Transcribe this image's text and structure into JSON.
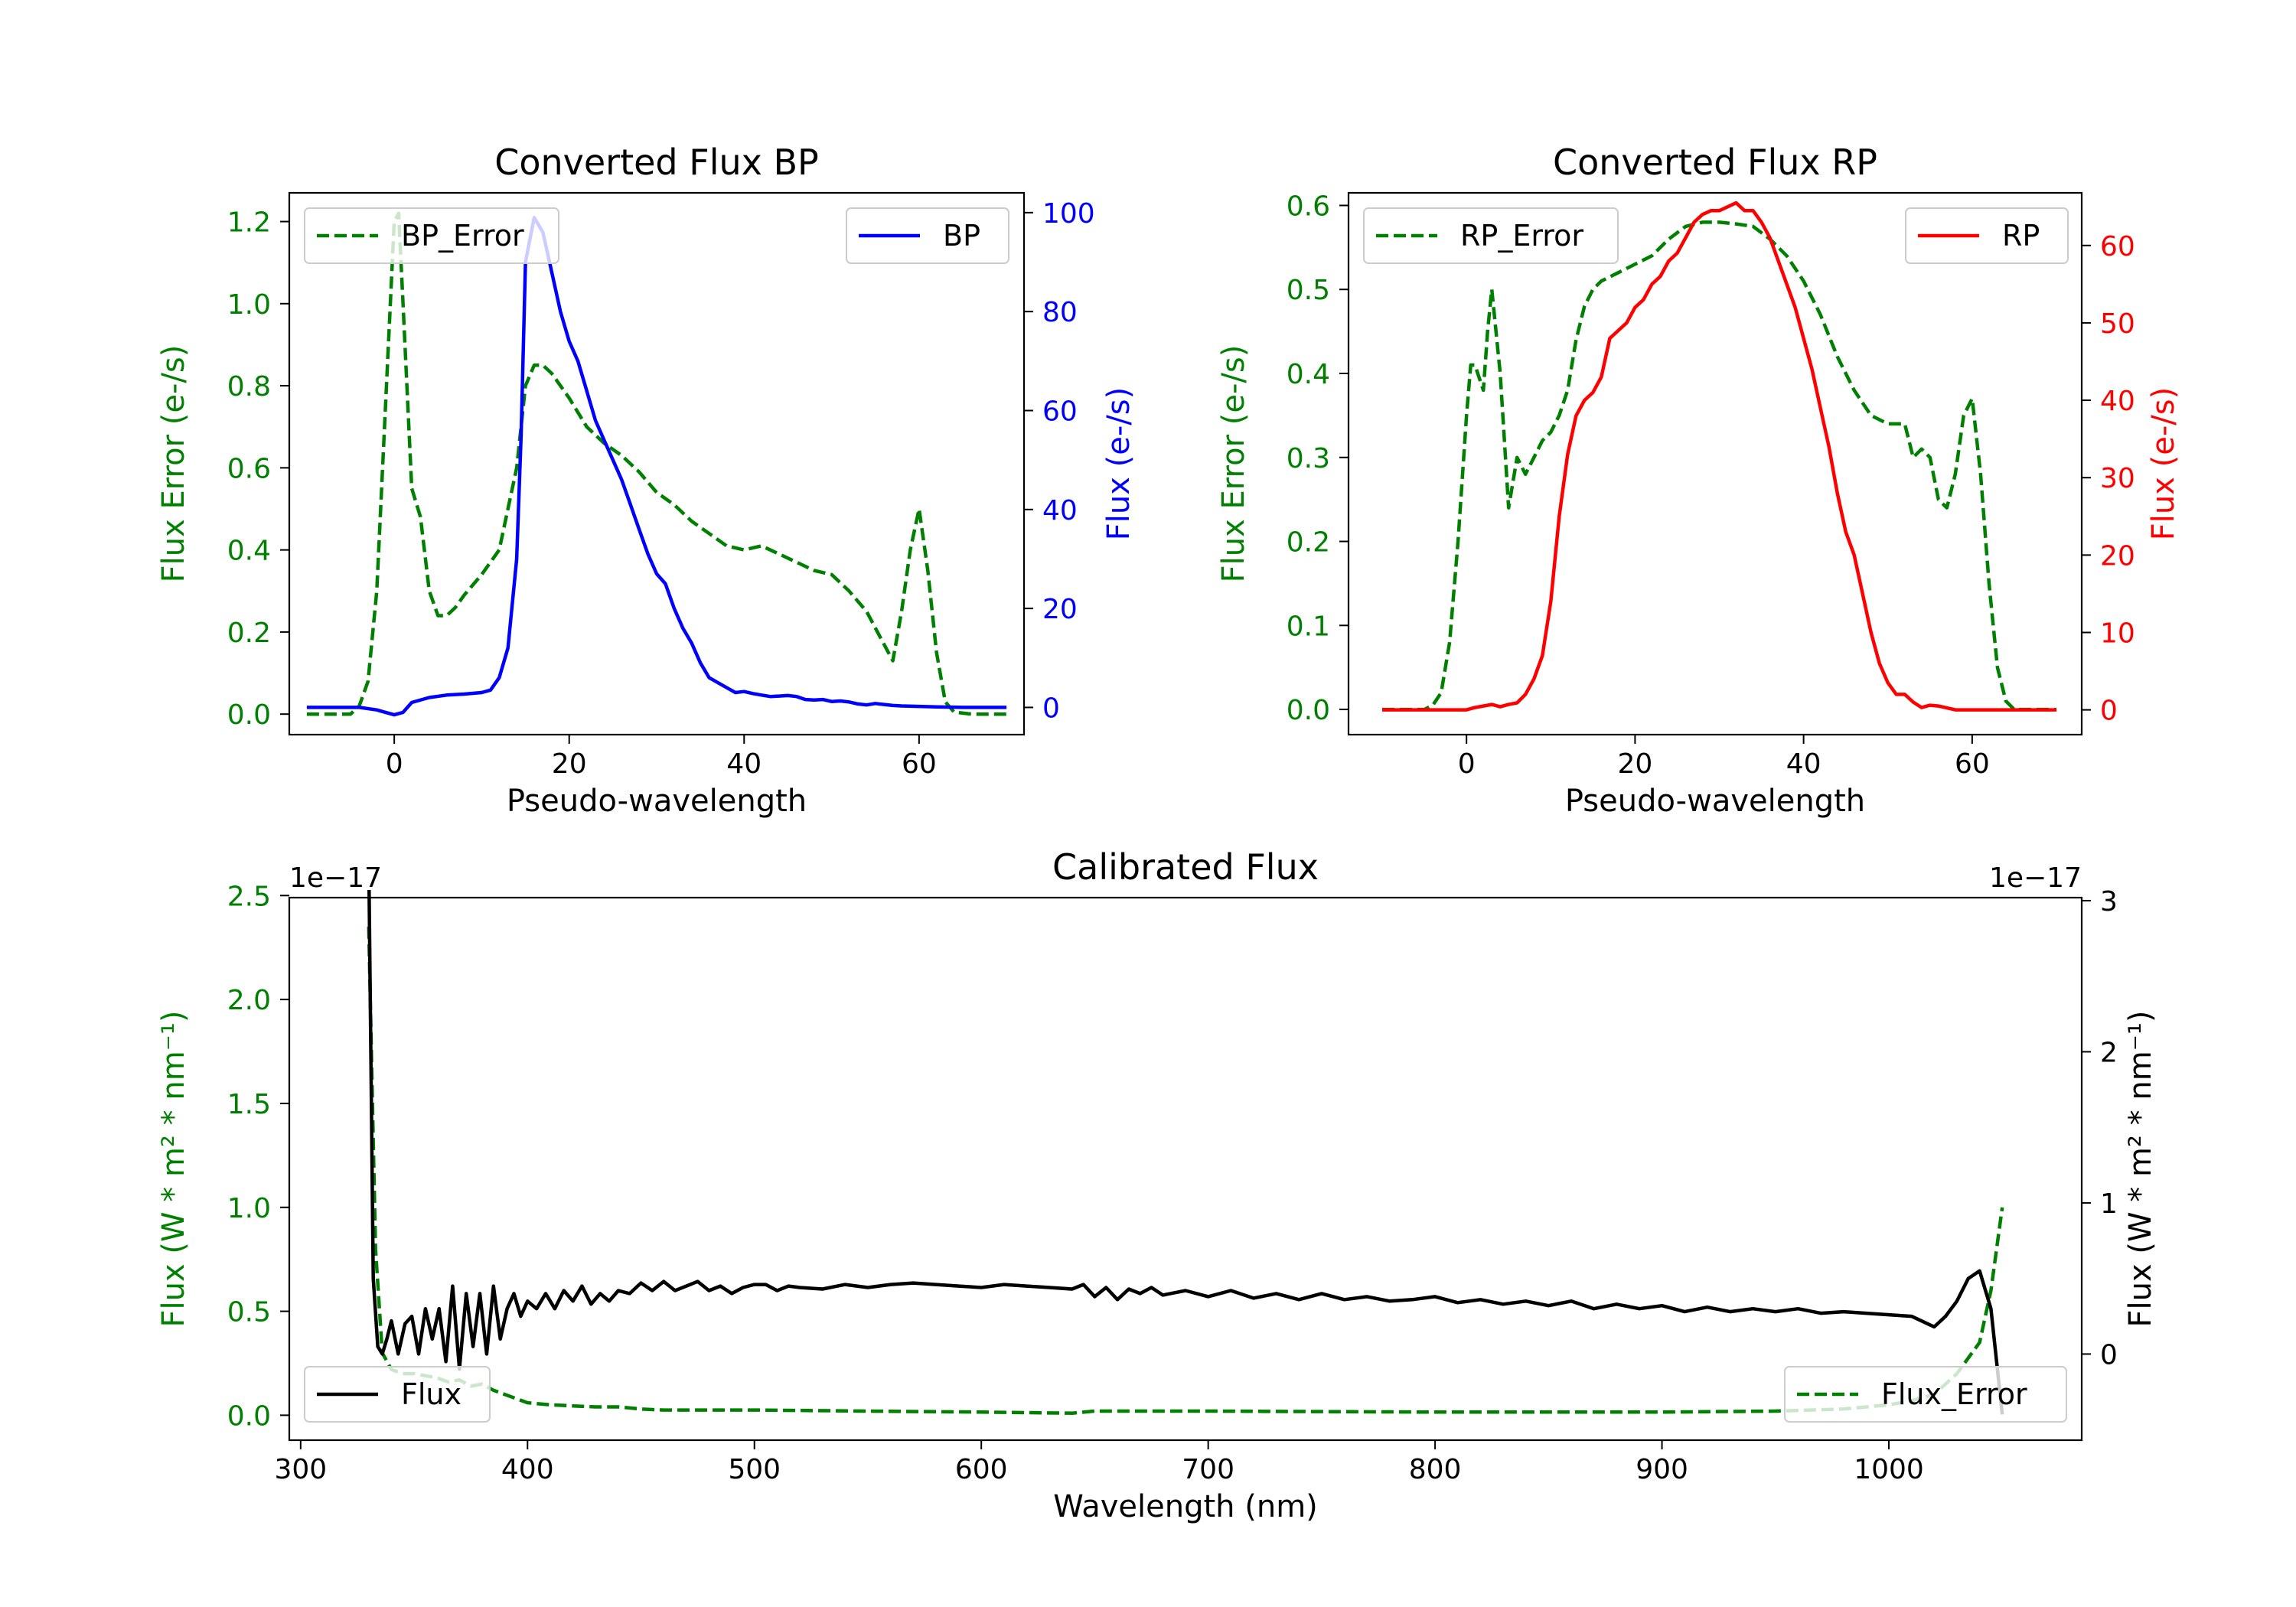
{
  "colors": {
    "error": "#008000",
    "bp": "#0000ff",
    "rp": "#ff0000",
    "flux": "#000000",
    "axis": "#000000"
  },
  "chart_data": [
    {
      "id": "bp",
      "type": "line",
      "title": "Converted Flux BP",
      "xlabel": "Pseudo-wavelength",
      "ylabel_left": "Flux Error (e-/s)",
      "ylabel_right": "Flux (e-/s)",
      "xlim": [
        -12,
        72
      ],
      "ylim_left": [
        -0.05,
        1.27
      ],
      "ylim_right": [
        -5.5,
        104
      ],
      "xticks": [
        0,
        20,
        40,
        60
      ],
      "xtick_labels": [
        "0",
        "20",
        "40",
        "60"
      ],
      "yticks_left": [
        0.0,
        0.2,
        0.4,
        0.6,
        0.8,
        1.0,
        1.2
      ],
      "ytick_labels_left": [
        "0.0",
        "0.2",
        "0.4",
        "0.6",
        "0.8",
        "1.0",
        "1.2"
      ],
      "yticks_right": [
        0,
        20,
        40,
        60,
        80,
        100
      ],
      "ytick_labels_right": [
        "0",
        "20",
        "40",
        "60",
        "80",
        "100"
      ],
      "legend_left": {
        "label": "BP_Error",
        "position": "upper left"
      },
      "legend_right": {
        "label": "BP",
        "position": "upper right"
      },
      "series": [
        {
          "name": "BP_Error",
          "axis": "left",
          "style": "dashed",
          "color_key": "error",
          "x": [
            -10,
            -5,
            -4,
            -3,
            -2,
            -1,
            0,
            0.5,
            1,
            2,
            3,
            4,
            5,
            6,
            7,
            8,
            10,
            12,
            14,
            15,
            16,
            17,
            18,
            20,
            22,
            24,
            26,
            28,
            30,
            32,
            34,
            36,
            38,
            40,
            42,
            44,
            46,
            48,
            50,
            52,
            54,
            56,
            57,
            58,
            59,
            60,
            61,
            62,
            63,
            64,
            66,
            70
          ],
          "y": [
            0,
            0,
            0.02,
            0.08,
            0.3,
            0.75,
            1.2,
            1.22,
            1.0,
            0.55,
            0.48,
            0.3,
            0.24,
            0.24,
            0.26,
            0.29,
            0.34,
            0.4,
            0.6,
            0.8,
            0.85,
            0.85,
            0.83,
            0.77,
            0.7,
            0.66,
            0.63,
            0.59,
            0.54,
            0.51,
            0.47,
            0.44,
            0.41,
            0.4,
            0.41,
            0.39,
            0.37,
            0.35,
            0.34,
            0.3,
            0.25,
            0.17,
            0.13,
            0.25,
            0.4,
            0.5,
            0.35,
            0.15,
            0.03,
            0.005,
            0,
            0
          ]
        },
        {
          "name": "BP",
          "axis": "right",
          "style": "solid",
          "color_key": "bp",
          "x": [
            -10,
            -4,
            -2,
            -1,
            0,
            1,
            2,
            4,
            6,
            8,
            10,
            11,
            12,
            13,
            14,
            14.5,
            15,
            16,
            17,
            18,
            19,
            20,
            21,
            22,
            23,
            24,
            25,
            26,
            27,
            28,
            29,
            30,
            31,
            32,
            33,
            34,
            35,
            36,
            37,
            38,
            39,
            40,
            41,
            42,
            43,
            44,
            45,
            46,
            47,
            48,
            49,
            50,
            51,
            52,
            53,
            54,
            55,
            56,
            57,
            58,
            60,
            62,
            65,
            70
          ],
          "y": [
            0,
            0,
            -0.5,
            -1,
            -1.5,
            -1,
            1,
            2,
            2.5,
            2.7,
            3,
            3.5,
            6,
            12,
            30,
            55,
            90,
            99,
            96,
            88,
            80,
            74,
            70,
            64,
            58,
            54,
            50,
            46,
            41,
            36,
            31,
            27,
            25,
            20,
            16,
            13,
            9,
            6,
            5,
            4,
            3,
            3.2,
            2.8,
            2.5,
            2.2,
            2.3,
            2.4,
            2.2,
            1.6,
            1.5,
            1.6,
            1.2,
            1.3,
            1.1,
            0.7,
            0.5,
            0.8,
            0.6,
            0.4,
            0.3,
            0.2,
            0.1,
            0,
            0
          ]
        }
      ]
    },
    {
      "id": "rp",
      "type": "line",
      "title": "Converted Flux RP",
      "xlabel": "Pseudo-wavelength",
      "ylabel_left": "Flux Error (e-/s)",
      "ylabel_right": "Flux (e-/s)",
      "xlim": [
        -14,
        73
      ],
      "ylim_left": [
        -0.03,
        0.615
      ],
      "ylim_right": [
        -3.2,
        66.8
      ],
      "xticks": [
        0,
        20,
        40,
        60
      ],
      "xtick_labels": [
        "0",
        "20",
        "40",
        "60"
      ],
      "yticks_left": [
        0.0,
        0.1,
        0.2,
        0.3,
        0.4,
        0.5,
        0.6
      ],
      "ytick_labels_left": [
        "0.0",
        "0.1",
        "0.2",
        "0.3",
        "0.4",
        "0.5",
        "0.6"
      ],
      "yticks_right": [
        0,
        10,
        20,
        30,
        40,
        50,
        60
      ],
      "ytick_labels_right": [
        "0",
        "10",
        "20",
        "30",
        "40",
        "50",
        "60"
      ],
      "legend_left": {
        "label": "RP_Error",
        "position": "upper left"
      },
      "legend_right": {
        "label": "RP",
        "position": "upper right"
      },
      "series": [
        {
          "name": "RP_Error",
          "axis": "left",
          "style": "dashed",
          "color_key": "error",
          "x": [
            -10,
            -5,
            -4,
            -3,
            -2,
            -1,
            0,
            0.5,
            1,
            2,
            2.5,
            3,
            4,
            5,
            6,
            7,
            8,
            9,
            10,
            11,
            12,
            13,
            14,
            15,
            16,
            18,
            20,
            22,
            24,
            26,
            28,
            30,
            32,
            34,
            36,
            38,
            40,
            42,
            44,
            46,
            48,
            50,
            52,
            53,
            54,
            55,
            56,
            57,
            58,
            59,
            60,
            61,
            62,
            63,
            64,
            65,
            70
          ],
          "y": [
            0,
            0,
            0.005,
            0.02,
            0.08,
            0.2,
            0.35,
            0.41,
            0.41,
            0.38,
            0.45,
            0.5,
            0.4,
            0.24,
            0.3,
            0.28,
            0.3,
            0.32,
            0.33,
            0.35,
            0.38,
            0.44,
            0.48,
            0.5,
            0.51,
            0.52,
            0.53,
            0.54,
            0.56,
            0.575,
            0.58,
            0.58,
            0.578,
            0.575,
            0.56,
            0.54,
            0.51,
            0.47,
            0.42,
            0.38,
            0.35,
            0.34,
            0.34,
            0.3,
            0.31,
            0.3,
            0.25,
            0.24,
            0.28,
            0.35,
            0.37,
            0.28,
            0.15,
            0.05,
            0.01,
            0,
            0
          ]
        },
        {
          "name": "RP",
          "axis": "right",
          "style": "solid",
          "color_key": "rp",
          "x": [
            -10,
            -5,
            0,
            1,
            2,
            3,
            4,
            5,
            6,
            7,
            8,
            9,
            10,
            11,
            12,
            13,
            14,
            15,
            16,
            17,
            18,
            19,
            20,
            21,
            22,
            23,
            24,
            25,
            26,
            27,
            28,
            29,
            30,
            31,
            32,
            33,
            34,
            35,
            36,
            37,
            38,
            39,
            40,
            41,
            42,
            43,
            44,
            45,
            46,
            47,
            48,
            49,
            50,
            51,
            52,
            53,
            54,
            55,
            56,
            58,
            60,
            62,
            65,
            70
          ],
          "y": [
            0,
            0,
            0,
            0.3,
            0.5,
            0.7,
            0.4,
            0.7,
            0.9,
            2,
            4,
            7,
            14,
            25,
            33,
            38,
            40,
            41,
            43,
            48,
            49,
            50,
            52,
            53,
            55,
            56,
            58,
            59,
            61,
            63,
            64,
            64.5,
            64.5,
            65,
            65.5,
            64.5,
            64.5,
            63,
            61,
            58,
            55,
            52,
            48,
            44,
            39,
            34,
            28,
            23,
            20,
            15,
            10,
            6,
            3.5,
            2,
            2,
            1,
            0.3,
            0.6,
            0.5,
            0,
            0,
            0,
            0,
            0
          ]
        }
      ]
    },
    {
      "id": "calibrated",
      "type": "line",
      "title": "Calibrated Flux",
      "xlabel": "Wavelength (nm)",
      "ylabel_left": "Flux (W * m² * nm⁻¹)",
      "ylabel_right": "Flux (W * m² * nm⁻¹)",
      "offset_text_left": "1e−17",
      "offset_text_right": "1e−17",
      "xlim": [
        295,
        1085
      ],
      "ylim_left": [
        -0.12,
        2.49
      ],
      "ylim_right": [
        -0.57,
        3.02
      ],
      "xticks": [
        300,
        400,
        500,
        600,
        700,
        800,
        900,
        1000
      ],
      "xtick_labels": [
        "300",
        "400",
        "500",
        "600",
        "700",
        "800",
        "900",
        "1000"
      ],
      "yticks_left": [
        0.0,
        0.5,
        1.0,
        1.5,
        2.0,
        2.5
      ],
      "ytick_labels_left": [
        "0.0",
        "0.5",
        "1.0",
        "1.5",
        "2.0",
        "2.5"
      ],
      "yticks_right": [
        0,
        1,
        2,
        3
      ],
      "ytick_labels_right": [
        "0",
        "1",
        "2",
        "3"
      ],
      "legend_left": {
        "label": "Flux",
        "position": "lower left"
      },
      "legend_right": {
        "label": "Flux_Error",
        "position": "lower right"
      },
      "series": [
        {
          "name": "Flux_Error",
          "axis": "left",
          "style": "dashed",
          "color_key": "error",
          "x": [
            330,
            333,
            336,
            340,
            345,
            350,
            355,
            360,
            365,
            370,
            375,
            380,
            385,
            390,
            395,
            400,
            410,
            420,
            430,
            440,
            450,
            460,
            500,
            550,
            600,
            640,
            650,
            700,
            800,
            900,
            950,
            980,
            1000,
            1010,
            1020,
            1030,
            1040,
            1045,
            1050
          ],
          "y": [
            2.35,
            0.8,
            0.3,
            0.22,
            0.2,
            0.2,
            0.19,
            0.18,
            0.16,
            0.17,
            0.14,
            0.15,
            0.12,
            0.1,
            0.08,
            0.06,
            0.05,
            0.045,
            0.04,
            0.04,
            0.03,
            0.025,
            0.025,
            0.02,
            0.015,
            0.01,
            0.02,
            0.02,
            0.015,
            0.015,
            0.02,
            0.03,
            0.05,
            0.07,
            0.1,
            0.2,
            0.35,
            0.6,
            1.0
          ]
        },
        {
          "name": "Flux",
          "axis": "right",
          "style": "solid",
          "color_key": "flux",
          "x": [
            330,
            332,
            334,
            336,
            338,
            340,
            343,
            346,
            349,
            352,
            355,
            358,
            361,
            364,
            367,
            370,
            373,
            376,
            379,
            382,
            385,
            388,
            391,
            394,
            397,
            400,
            404,
            408,
            412,
            416,
            420,
            424,
            428,
            432,
            436,
            440,
            445,
            450,
            455,
            460,
            465,
            470,
            475,
            480,
            485,
            490,
            495,
            500,
            505,
            510,
            515,
            520,
            530,
            540,
            550,
            560,
            570,
            580,
            590,
            600,
            610,
            620,
            630,
            640,
            645,
            650,
            655,
            660,
            665,
            670,
            675,
            680,
            690,
            700,
            710,
            720,
            730,
            740,
            750,
            760,
            770,
            780,
            790,
            800,
            810,
            820,
            830,
            840,
            850,
            860,
            870,
            880,
            890,
            900,
            910,
            920,
            930,
            940,
            950,
            960,
            970,
            980,
            990,
            1000,
            1010,
            1020,
            1025,
            1030,
            1035,
            1040,
            1045,
            1050
          ],
          "y": [
            3.3,
            0.5,
            0.05,
            0.0,
            0.1,
            0.22,
            0.0,
            0.2,
            0.25,
            0.0,
            0.3,
            0.1,
            0.3,
            -0.05,
            0.45,
            -0.1,
            0.4,
            0.05,
            0.4,
            0.0,
            0.45,
            0.1,
            0.3,
            0.4,
            0.25,
            0.35,
            0.3,
            0.4,
            0.3,
            0.42,
            0.35,
            0.45,
            0.33,
            0.4,
            0.35,
            0.42,
            0.4,
            0.47,
            0.42,
            0.48,
            0.42,
            0.45,
            0.48,
            0.42,
            0.45,
            0.4,
            0.44,
            0.46,
            0.46,
            0.42,
            0.45,
            0.44,
            0.43,
            0.46,
            0.44,
            0.46,
            0.47,
            0.46,
            0.45,
            0.44,
            0.46,
            0.45,
            0.44,
            0.43,
            0.46,
            0.38,
            0.44,
            0.36,
            0.43,
            0.4,
            0.44,
            0.39,
            0.42,
            0.38,
            0.42,
            0.37,
            0.4,
            0.36,
            0.4,
            0.36,
            0.38,
            0.35,
            0.36,
            0.38,
            0.34,
            0.36,
            0.33,
            0.35,
            0.32,
            0.35,
            0.3,
            0.33,
            0.3,
            0.32,
            0.28,
            0.31,
            0.28,
            0.3,
            0.28,
            0.3,
            0.27,
            0.28,
            0.27,
            0.26,
            0.25,
            0.18,
            0.25,
            0.35,
            0.5,
            0.55,
            0.3,
            -0.4
          ]
        }
      ]
    }
  ]
}
